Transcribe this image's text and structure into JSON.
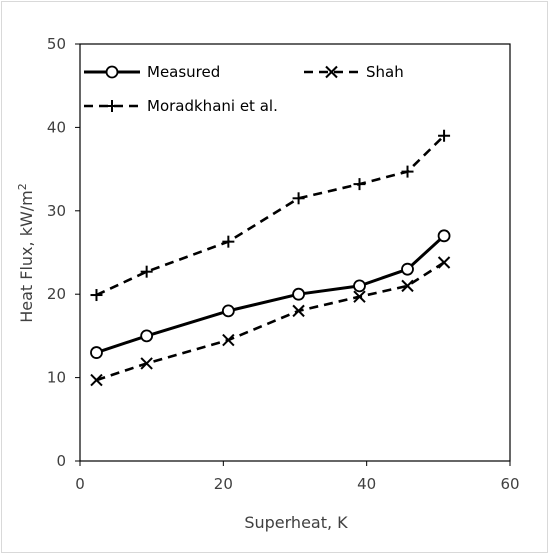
{
  "chart_data": {
    "type": "line",
    "title": "",
    "xlabel": "Superheat, K",
    "ylabel": "Heat Flux, kW/m",
    "ylabel_superscript": "2",
    "xlim": [
      0,
      60
    ],
    "ylim": [
      0,
      50
    ],
    "xticks": [
      "0",
      "20",
      "40",
      "60"
    ],
    "yticks": [
      "0",
      "10",
      "20",
      "30",
      "40",
      "50"
    ],
    "grid": false,
    "legend": "top",
    "series": [
      {
        "name": "Measured",
        "style": "solid",
        "marker": "circle",
        "x": [
          2.3,
          9.3,
          20.7,
          30.5,
          39.0,
          45.7,
          50.8
        ],
        "y": [
          13.0,
          15.0,
          18.0,
          20.0,
          21.0,
          23.0,
          27.0
        ]
      },
      {
        "name": "Shah",
        "style": "dashed",
        "marker": "x",
        "x": [
          2.3,
          9.3,
          20.7,
          30.5,
          39.0,
          45.7,
          50.8
        ],
        "y": [
          9.7,
          11.7,
          14.5,
          18.0,
          19.7,
          21.0,
          23.8
        ]
      },
      {
        "name": "Moradkhani et al.",
        "style": "dashed",
        "marker": "plus",
        "x": [
          2.3,
          9.3,
          20.7,
          30.5,
          39.0,
          45.7,
          50.8
        ],
        "y": [
          19.9,
          22.7,
          26.3,
          31.5,
          33.2,
          34.7,
          39.0
        ]
      }
    ],
    "colors": {
      "line": "#000000",
      "axis": "#000000",
      "text": "#404040",
      "frame": "#d9d9d9"
    }
  }
}
